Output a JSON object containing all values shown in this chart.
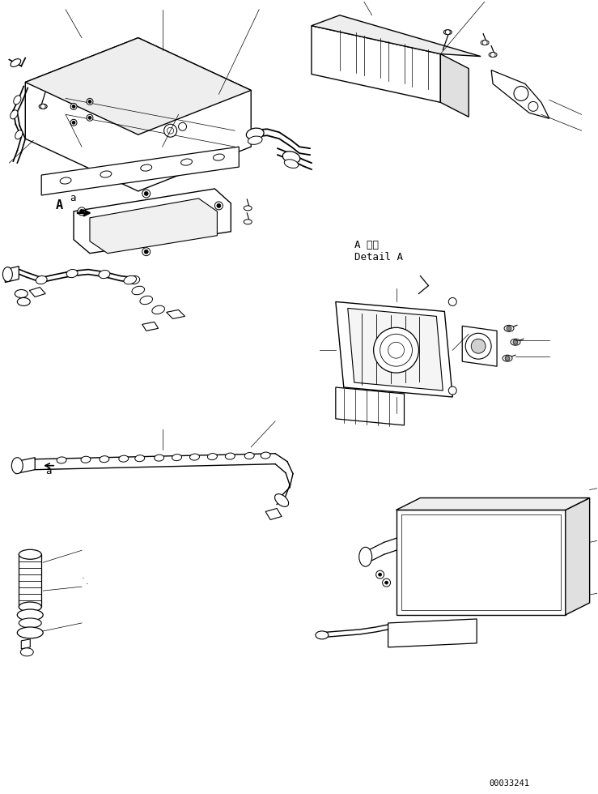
{
  "title": "",
  "background_color": "#ffffff",
  "line_color": "#000000",
  "figsize": [
    7.39,
    9.8
  ],
  "dpi": 100,
  "part_number": "00033241",
  "detail_label_jp": "A 詳細",
  "detail_label_en": "Detail A",
  "label_a_text": "a",
  "label_A_text": "A"
}
